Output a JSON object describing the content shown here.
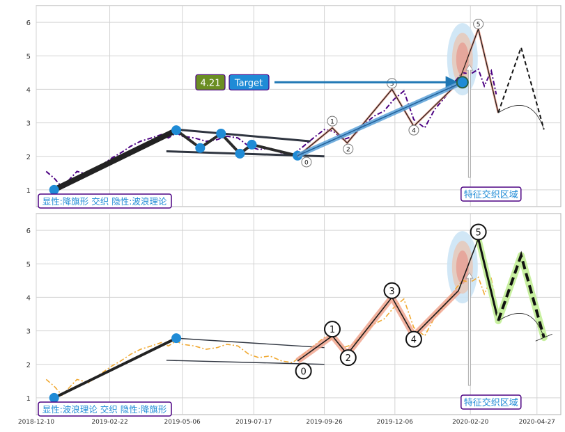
{
  "chart_data": [
    {
      "type": "line",
      "panel": "top",
      "xlabel": "",
      "ylabel": "",
      "ylim": [
        0.5,
        6.5
      ],
      "yticks": [
        1,
        2,
        3,
        4,
        5,
        6
      ],
      "xlim": [
        "2018-12-10",
        "2020-05-21"
      ],
      "xticks": [],
      "grid": true,
      "legend_box": {
        "text": "显性:降旗形 交织 隐性:波浪理论",
        "placement": "bottom-left"
      },
      "zone_label": "特征交织区域",
      "price_series": {
        "color": "#4b0082",
        "style": "dashdot",
        "x": [
          "2018-12-20",
          "2018-12-28",
          "2019-01-05",
          "2019-01-12",
          "2019-01-20",
          "2019-02-01",
          "2019-02-12",
          "2019-02-24",
          "2019-03-05",
          "2019-03-15",
          "2019-03-25",
          "2019-04-05",
          "2019-04-15",
          "2019-04-22",
          "2019-04-30",
          "2019-05-06",
          "2019-05-18",
          "2019-05-30",
          "2019-06-10",
          "2019-06-20",
          "2019-07-01",
          "2019-07-12",
          "2019-07-22",
          "2019-08-02",
          "2019-08-14",
          "2019-08-25",
          "2019-09-05",
          "2019-09-15",
          "2019-09-26",
          "2019-10-05",
          "2019-10-15",
          "2019-10-25",
          "2019-11-05",
          "2019-11-15",
          "2019-11-25",
          "2019-12-05",
          "2019-12-15",
          "2019-12-25",
          "2020-01-05",
          "2020-01-15",
          "2020-01-25",
          "2020-02-05",
          "2020-02-12",
          "2020-02-20",
          "2020-02-28",
          "2020-03-05",
          "2020-03-12",
          "2020-03-17"
        ],
        "y": [
          1.55,
          1.35,
          1.08,
          1.3,
          1.55,
          1.45,
          1.7,
          1.95,
          2.1,
          2.3,
          2.45,
          2.55,
          2.65,
          2.55,
          2.7,
          2.6,
          2.55,
          2.45,
          2.5,
          2.6,
          2.55,
          2.3,
          2.2,
          2.25,
          2.1,
          2.05,
          2.3,
          2.55,
          2.8,
          2.75,
          2.5,
          2.6,
          2.95,
          3.2,
          3.35,
          3.7,
          3.95,
          3.1,
          2.85,
          3.4,
          3.75,
          4.25,
          4.5,
          4.45,
          4.6,
          4.1,
          4.55,
          3.85
        ]
      },
      "flag_lines": [
        {
          "x": [
            "2019-04-30",
            "2019-09-12"
          ],
          "y": [
            2.8,
            2.45
          ]
        },
        {
          "x": [
            "2019-04-20",
            "2019-09-26"
          ],
          "y": [
            2.15,
            2.0
          ]
        }
      ],
      "pattern_path": {
        "x": [
          "2018-12-28",
          "2019-04-30",
          "2019-05-24",
          "2019-06-14",
          "2019-07-03",
          "2019-07-15",
          "2019-08-30"
        ],
        "y": [
          1.0,
          2.78,
          2.25,
          2.68,
          2.08,
          2.35,
          2.02
        ]
      },
      "pattern_points": {
        "x": [
          "2018-12-28",
          "2019-04-30",
          "2019-05-24",
          "2019-06-14",
          "2019-07-03",
          "2019-07-15",
          "2019-08-30"
        ],
        "y": [
          1.0,
          2.78,
          2.25,
          2.68,
          2.08,
          2.35,
          2.02
        ]
      },
      "wave_path": {
        "x": [
          "2019-08-30",
          "2019-10-04",
          "2019-10-19",
          "2019-12-03",
          "2019-12-25",
          "2020-02-08",
          "2020-02-28",
          "2020-03-19"
        ],
        "y": [
          2.0,
          2.85,
          2.4,
          4.0,
          2.9,
          4.2,
          5.8,
          3.3
        ]
      },
      "wave_labels": [
        {
          "text": "0",
          "x": "2019-09-08",
          "y": 1.83
        },
        {
          "text": "1",
          "x": "2019-10-04",
          "y": 3.05
        },
        {
          "text": "2",
          "x": "2019-10-20",
          "y": 2.22
        },
        {
          "text": "3",
          "x": "2019-12-03",
          "y": 4.18
        },
        {
          "text": "4",
          "x": "2019-12-25",
          "y": 2.78
        },
        {
          "text": "5",
          "x": "2020-02-28",
          "y": 5.95
        }
      ],
      "projection": {
        "x": [
          "2020-03-19",
          "2020-04-11",
          "2020-05-04"
        ],
        "y": [
          3.3,
          5.25,
          2.8
        ]
      },
      "annotation": {
        "value": "4.21",
        "label": "Target",
        "arrow_to": {
          "x": "2020-02-12",
          "y": 4.21
        }
      }
    },
    {
      "type": "line",
      "panel": "bottom",
      "xlabel": "",
      "ylabel": "",
      "ylim": [
        0.5,
        6.5
      ],
      "yticks": [
        1,
        2,
        3,
        4,
        5,
        6
      ],
      "xlim": [
        "2018-12-10",
        "2020-05-21"
      ],
      "xticks": [
        "2018-12-10",
        "2019-02-22",
        "2019-05-06",
        "2019-07-17",
        "2019-09-26",
        "2019-12-06",
        "2020-02-20",
        "2020-04-27"
      ],
      "grid": true,
      "legend_box": {
        "text": "显性:波浪理论 交织 隐性:降旗形",
        "placement": "bottom-left"
      },
      "zone_label": "特征交织区域",
      "price_series": {
        "color": "#f0a830",
        "style": "dashdot",
        "x": [
          "2018-12-20",
          "2018-12-28",
          "2019-01-05",
          "2019-01-12",
          "2019-01-20",
          "2019-02-01",
          "2019-02-12",
          "2019-02-24",
          "2019-03-05",
          "2019-03-15",
          "2019-03-25",
          "2019-04-05",
          "2019-04-15",
          "2019-04-22",
          "2019-04-30",
          "2019-05-06",
          "2019-05-18",
          "2019-05-30",
          "2019-06-10",
          "2019-06-20",
          "2019-07-01",
          "2019-07-12",
          "2019-07-22",
          "2019-08-02",
          "2019-08-14",
          "2019-08-25",
          "2019-09-05",
          "2019-09-15",
          "2019-09-26",
          "2019-10-05",
          "2019-10-15",
          "2019-10-25",
          "2019-11-05",
          "2019-11-15",
          "2019-11-25",
          "2019-12-05",
          "2019-12-15",
          "2019-12-25",
          "2020-01-05",
          "2020-01-15",
          "2020-01-25",
          "2020-02-05",
          "2020-02-12",
          "2020-02-20",
          "2020-02-28",
          "2020-03-05",
          "2020-03-12",
          "2020-03-17"
        ],
        "y": [
          1.55,
          1.35,
          1.08,
          1.3,
          1.55,
          1.45,
          1.7,
          1.95,
          2.1,
          2.3,
          2.45,
          2.55,
          2.65,
          2.55,
          2.7,
          2.6,
          2.55,
          2.45,
          2.5,
          2.6,
          2.55,
          2.3,
          2.2,
          2.25,
          2.1,
          2.05,
          2.3,
          2.55,
          2.8,
          2.75,
          2.5,
          2.6,
          2.95,
          3.2,
          3.35,
          3.7,
          3.95,
          3.1,
          2.85,
          3.4,
          3.75,
          4.25,
          4.5,
          4.45,
          4.6,
          4.1,
          4.55,
          3.85
        ]
      },
      "flag_lines": [
        {
          "x": [
            "2019-04-30",
            "2019-09-26"
          ],
          "y": [
            2.78,
            2.5
          ]
        },
        {
          "x": [
            "2019-04-20",
            "2019-09-26"
          ],
          "y": [
            2.12,
            2.0
          ]
        }
      ],
      "trend_line": {
        "x": [
          "2018-12-28",
          "2019-04-30"
        ],
        "y": [
          1.0,
          2.78
        ]
      },
      "trend_points": {
        "x": [
          "2018-12-28",
          "2019-04-30"
        ],
        "y": [
          1.0,
          2.78
        ]
      },
      "wave_path": {
        "x": [
          "2019-08-30",
          "2019-10-04",
          "2019-10-19",
          "2019-12-03",
          "2019-12-25",
          "2020-02-08",
          "2020-02-28",
          "2020-03-19"
        ],
        "y": [
          2.1,
          2.85,
          2.3,
          4.0,
          2.85,
          4.2,
          5.75,
          3.3
        ]
      },
      "wave_labels": [
        {
          "text": "0",
          "x": "2019-09-05",
          "y": 1.8
        },
        {
          "text": "1",
          "x": "2019-10-04",
          "y": 3.05
        },
        {
          "text": "2",
          "x": "2019-10-20",
          "y": 2.2
        },
        {
          "text": "3",
          "x": "2019-12-03",
          "y": 4.2
        },
        {
          "text": "4",
          "x": "2019-12-25",
          "y": 2.75
        },
        {
          "text": "5",
          "x": "2020-02-28",
          "y": 5.95
        }
      ],
      "projection": {
        "x": [
          "2020-03-19",
          "2020-04-11",
          "2020-05-04"
        ],
        "y": [
          3.3,
          5.25,
          2.8
        ]
      }
    }
  ]
}
